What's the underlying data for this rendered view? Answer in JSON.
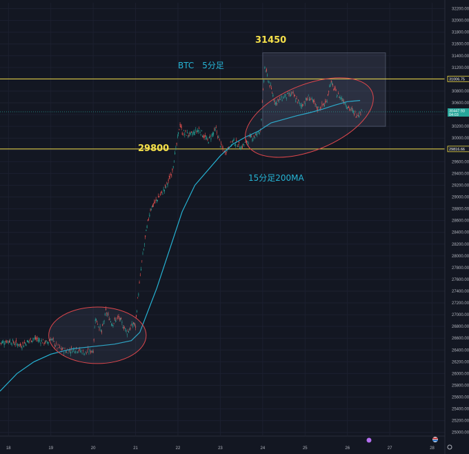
{
  "chart_data": {
    "type": "line",
    "instrument_label": "BTC　5分足",
    "ma_label": "15分足200MA",
    "annotations": {
      "high": "31450",
      "support": "29800"
    },
    "hlines": [
      {
        "value": 31006.75,
        "label": "31006.75",
        "color": "#f5e04a"
      },
      {
        "value": 29816.66,
        "label": "29816.66",
        "color": "#f5e04a"
      }
    ],
    "current_price": {
      "value": 30447.93,
      "label": "30447.93",
      "countdown": "04:03",
      "color": "#26a69a"
    },
    "ylim": [
      24950,
      32300
    ],
    "y_ticks": [
      "25000.00",
      "25200.00",
      "25400.00",
      "25600.00",
      "25800.00",
      "26000.00",
      "26200.00",
      "26400.00",
      "26600.00",
      "26800.00",
      "27000.00",
      "27200.00",
      "27400.00",
      "27600.00",
      "27800.00",
      "28000.00",
      "28200.00",
      "28400.00",
      "28600.00",
      "28800.00",
      "29000.00",
      "29200.00",
      "29400.00",
      "29600.00",
      "29800.00",
      "30000.00",
      "30200.00",
      "30400.00",
      "30600.00",
      "30800.00",
      "31000.00",
      "31200.00",
      "31400.00",
      "31600.00",
      "31800.00",
      "32000.00",
      "32200.00"
    ],
    "x_ticks": [
      "18",
      "19",
      "20",
      "21",
      "22",
      "23",
      "24",
      "25",
      "26",
      "27",
      "28"
    ],
    "xlim": [
      17.8,
      28.3
    ],
    "price_path": [
      [
        17.8,
        26520
      ],
      [
        18.0,
        26560
      ],
      [
        18.3,
        26480
      ],
      [
        18.6,
        26600
      ],
      [
        18.9,
        26520
      ],
      [
        19.0,
        26600
      ],
      [
        19.15,
        26450
      ],
      [
        19.35,
        26380
      ],
      [
        19.6,
        26420
      ],
      [
        19.8,
        26350
      ],
      [
        20.0,
        26400
      ],
      [
        20.05,
        26950
      ],
      [
        20.2,
        26700
      ],
      [
        20.3,
        27050
      ],
      [
        20.45,
        26850
      ],
      [
        20.6,
        26950
      ],
      [
        20.8,
        26700
      ],
      [
        20.95,
        26850
      ],
      [
        21.0,
        26800
      ],
      [
        21.05,
        27250
      ],
      [
        21.15,
        27900
      ],
      [
        21.25,
        28400
      ],
      [
        21.35,
        28800
      ],
      [
        21.5,
        28950
      ],
      [
        21.7,
        29150
      ],
      [
        21.85,
        29400
      ],
      [
        21.95,
        29800
      ],
      [
        22.05,
        30250
      ],
      [
        22.1,
        30100
      ],
      [
        22.3,
        30050
      ],
      [
        22.5,
        30150
      ],
      [
        22.7,
        29950
      ],
      [
        22.9,
        30150
      ],
      [
        23.0,
        29900
      ],
      [
        23.1,
        29750
      ],
      [
        23.3,
        29950
      ],
      [
        23.5,
        29850
      ],
      [
        23.7,
        30000
      ],
      [
        23.85,
        30050
      ],
      [
        23.95,
        30150
      ],
      [
        24.05,
        31200
      ],
      [
        24.15,
        30950
      ],
      [
        24.3,
        30600
      ],
      [
        24.5,
        30700
      ],
      [
        24.7,
        30750
      ],
      [
        24.9,
        30550
      ],
      [
        25.1,
        30700
      ],
      [
        25.3,
        30500
      ],
      [
        25.5,
        30600
      ],
      [
        25.6,
        30950
      ],
      [
        25.75,
        30750
      ],
      [
        25.9,
        30650
      ],
      [
        26.05,
        30500
      ],
      [
        26.2,
        30400
      ],
      [
        26.35,
        30448
      ]
    ],
    "ma_path": [
      [
        17.8,
        25700
      ],
      [
        18.2,
        26000
      ],
      [
        18.6,
        26200
      ],
      [
        19.0,
        26330
      ],
      [
        19.5,
        26420
      ],
      [
        20.0,
        26460
      ],
      [
        20.5,
        26500
      ],
      [
        20.9,
        26560
      ],
      [
        21.1,
        26700
      ],
      [
        21.5,
        27450
      ],
      [
        21.8,
        28100
      ],
      [
        22.1,
        28750
      ],
      [
        22.4,
        29200
      ],
      [
        22.7,
        29450
      ],
      [
        23.0,
        29700
      ],
      [
        23.3,
        29900
      ],
      [
        23.6,
        30020
      ],
      [
        23.9,
        30120
      ],
      [
        24.2,
        30260
      ],
      [
        24.5,
        30320
      ],
      [
        24.8,
        30380
      ],
      [
        25.1,
        30430
      ],
      [
        25.4,
        30490
      ],
      [
        25.7,
        30560
      ],
      [
        26.0,
        30620
      ],
      [
        26.3,
        30640
      ]
    ],
    "range_box": {
      "x": [
        24.0,
        26.9
      ],
      "y": [
        30200,
        31450
      ]
    },
    "ellipse_lows": {
      "center": [
        20.1,
        26650
      ],
      "radii_days": 1.15,
      "radii_price": 480
    },
    "ellipse_top": {
      "center": [
        25.1,
        30350
      ],
      "radii_days": 1.6,
      "radii_price": 560
    }
  }
}
